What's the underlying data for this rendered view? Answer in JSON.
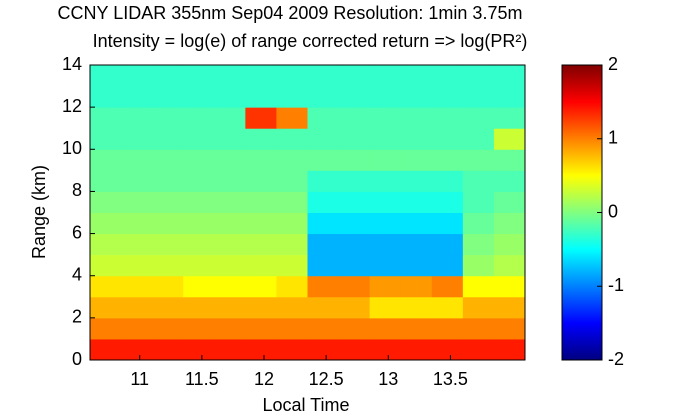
{
  "chart_data": {
    "type": "heatmap",
    "title": "CCNY LIDAR 355nm Sep04 2009 Resolution: 1min 3.75m",
    "subtitle": "Intensity = log(e) of range corrected return => log(PR²)",
    "x_label": "Local Time",
    "y_label": "Range (km)",
    "x": [
      10.6,
      10.85,
      11.1,
      11.35,
      11.6,
      11.85,
      12.1,
      12.35,
      12.6,
      12.85,
      13.1,
      13.35,
      13.6,
      13.85,
      14.1
    ],
    "y": [
      0,
      1,
      2,
      3,
      4,
      5,
      6,
      7,
      8,
      9,
      10,
      11,
      12,
      13,
      14
    ],
    "values": [
      [
        1.4,
        1.4,
        1.4,
        1.4,
        1.4,
        1.4,
        1.4,
        1.4,
        1.4,
        1.4,
        1.4,
        1.4,
        1.4,
        1.4
      ],
      [
        1.0,
        1.0,
        1.0,
        1.0,
        1.0,
        1.0,
        1.0,
        1.0,
        1.0,
        1.0,
        1.0,
        1.0,
        1.0,
        1.0
      ],
      [
        0.8,
        0.8,
        0.8,
        0.8,
        0.8,
        0.8,
        0.8,
        0.8,
        0.8,
        0.6,
        0.6,
        0.6,
        0.8,
        0.8
      ],
      [
        0.6,
        0.6,
        0.6,
        0.5,
        0.5,
        0.5,
        0.6,
        1.0,
        1.0,
        0.9,
        0.9,
        1.0,
        0.5,
        0.5
      ],
      [
        0.3,
        0.3,
        0.3,
        0.3,
        0.3,
        0.3,
        0.3,
        -0.8,
        -0.8,
        -0.8,
        -0.8,
        -0.8,
        0.1,
        0.2
      ],
      [
        0.2,
        0.2,
        0.2,
        0.2,
        0.2,
        0.2,
        0.2,
        -0.8,
        -0.8,
        -0.8,
        -0.8,
        -0.8,
        0,
        0.1
      ],
      [
        0.1,
        0.1,
        0.1,
        0.1,
        0.1,
        0.1,
        0.1,
        -0.6,
        -0.6,
        -0.6,
        -0.6,
        -0.6,
        -0.1,
        0
      ],
      [
        0,
        0,
        0,
        0,
        0,
        0,
        0,
        -0.4,
        -0.4,
        -0.4,
        -0.4,
        -0.4,
        -0.2,
        -0.1
      ],
      [
        -0.1,
        -0.1,
        -0.1,
        -0.1,
        -0.1,
        -0.1,
        -0.1,
        -0.3,
        -0.3,
        -0.3,
        -0.3,
        -0.3,
        -0.2,
        -0.2
      ],
      [
        -0.1,
        -0.1,
        -0.1,
        -0.1,
        -0.1,
        -0.1,
        -0.1,
        -0.1,
        -0.1,
        -0.1,
        -0.1,
        -0.1,
        -0.1,
        -0.1
      ],
      [
        -0.2,
        -0.2,
        -0.2,
        -0.2,
        -0.2,
        -0.2,
        -0.2,
        -0.2,
        -0.2,
        -0.2,
        -0.2,
        -0.2,
        -0.2,
        0.3
      ],
      [
        -0.2,
        -0.2,
        -0.2,
        -0.2,
        -0.2,
        1.3,
        1.0,
        -0.2,
        -0.2,
        -0.2,
        -0.2,
        -0.2,
        -0.2,
        -0.2
      ],
      [
        -0.3,
        -0.3,
        -0.3,
        -0.3,
        -0.3,
        -0.3,
        -0.3,
        -0.3,
        -0.3,
        -0.3,
        -0.3,
        -0.3,
        -0.3,
        -0.3
      ],
      [
        -0.3,
        -0.3,
        -0.3,
        -0.3,
        -0.3,
        -0.3,
        -0.3,
        -0.3,
        -0.3,
        -0.3,
        -0.3,
        -0.3,
        -0.3,
        -0.3
      ]
    ],
    "xlim": [
      10.6,
      14.1
    ],
    "xticks": [
      11,
      11.5,
      12,
      12.5,
      13,
      13.5
    ],
    "ylim": [
      0,
      14
    ],
    "yticks": [
      0,
      2,
      4,
      6,
      8,
      10,
      12,
      14
    ],
    "clim": [
      -2,
      2
    ],
    "cticks": [
      -2,
      -1,
      0,
      1,
      2
    ],
    "colormap": "jet"
  }
}
